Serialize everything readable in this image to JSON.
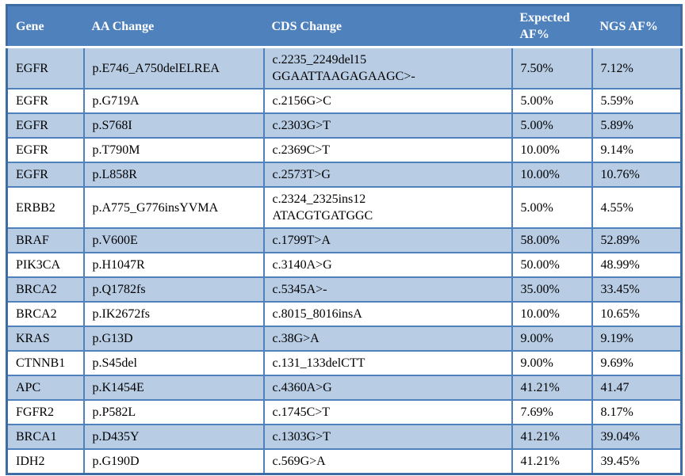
{
  "colors": {
    "header_bg": "#4f81bd",
    "header_text": "#ffffff",
    "row_shaded_bg": "#b8cce4",
    "row_plain_bg": "#ffffff",
    "inner_border": "#4f81bd",
    "outer_border": "#3e6da5",
    "body_text": "#000000"
  },
  "table": {
    "columns": [
      {
        "key": "gene",
        "label": "Gene"
      },
      {
        "key": "aa",
        "label": "AA Change"
      },
      {
        "key": "cds",
        "label": "CDS Change"
      },
      {
        "key": "expected",
        "label": "Expected AF%"
      },
      {
        "key": "ngs",
        "label": "NGS AF%"
      }
    ],
    "rows": [
      {
        "gene": "EGFR",
        "aa": "p.E746_A750delELREA",
        "cds": "c.2235_2249del15\nGGAATTAAGAGAAGC>-",
        "expected": "7.50%",
        "ngs": "7.12%"
      },
      {
        "gene": "EGFR",
        "aa": "p.G719A",
        "cds": "c.2156G>C",
        "expected": "5.00%",
        "ngs": "5.59%"
      },
      {
        "gene": "EGFR",
        "aa": "p.S768I",
        "cds": "c.2303G>T",
        "expected": "5.00%",
        "ngs": "5.89%"
      },
      {
        "gene": "EGFR",
        "aa": "p.T790M",
        "cds": "c.2369C>T",
        "expected": "10.00%",
        "ngs": "9.14%"
      },
      {
        "gene": "EGFR",
        "aa": "p.L858R",
        "cds": "c.2573T>G",
        "expected": "10.00%",
        "ngs": "10.76%"
      },
      {
        "gene": "ERBB2",
        "aa": "p.A775_G776insYVMA",
        "cds": "c.2324_2325ins12\nATACGTGATGGC",
        "expected": "5.00%",
        "ngs": "4.55%"
      },
      {
        "gene": "BRAF",
        "aa": "p.V600E",
        "cds": "c.1799T>A",
        "expected": "58.00%",
        "ngs": "52.89%"
      },
      {
        "gene": "PIK3CA",
        "aa": "p.H1047R",
        "cds": "c.3140A>G",
        "expected": "50.00%",
        "ngs": "48.99%"
      },
      {
        "gene": "BRCA2",
        "aa": "p.Q1782fs",
        "cds": "c.5345A>-",
        "expected": "35.00%",
        "ngs": "33.45%"
      },
      {
        "gene": "BRCA2",
        "aa": "p.IK2672fs",
        "cds": "c.8015_8016insA",
        "expected": "10.00%",
        "ngs": "10.65%"
      },
      {
        "gene": "KRAS",
        "aa": "p.G13D",
        "cds": "c.38G>A",
        "expected": "9.00%",
        "ngs": "9.19%"
      },
      {
        "gene": "CTNNB1",
        "aa": "p.S45del",
        "cds": "c.131_133delCTT",
        "expected": "9.00%",
        "ngs": "9.69%"
      },
      {
        "gene": "APC",
        "aa": "p.K1454E",
        "cds": "c.4360A>G",
        "expected": "41.21%",
        "ngs": "41.47"
      },
      {
        "gene": "FGFR2",
        "aa": "p.P582L",
        "cds": "c.1745C>T",
        "expected": "7.69%",
        "ngs": "8.17%"
      },
      {
        "gene": "BRCA1",
        "aa": "p.D435Y",
        "cds": "c.1303G>T",
        "expected": "41.21%",
        "ngs": "39.04%"
      },
      {
        "gene": "IDH2",
        "aa": "p.G190D",
        "cds": "c.569G>A",
        "expected": "41.21%",
        "ngs": "39.45%"
      }
    ]
  },
  "chart_data": {
    "type": "table",
    "title": "",
    "columns": [
      "Gene",
      "AA Change",
      "CDS Change",
      "Expected AF%",
      "NGS AF%"
    ],
    "series": [
      {
        "name": "Expected AF%",
        "values": [
          7.5,
          5.0,
          5.0,
          10.0,
          10.0,
          5.0,
          58.0,
          50.0,
          35.0,
          10.0,
          9.0,
          9.0,
          41.21,
          7.69,
          41.21,
          41.21
        ]
      },
      {
        "name": "NGS AF%",
        "values": [
          7.12,
          5.59,
          5.89,
          9.14,
          10.76,
          4.55,
          52.89,
          48.99,
          33.45,
          10.65,
          9.19,
          9.69,
          41.47,
          8.17,
          39.04,
          39.45
        ]
      }
    ],
    "categories": [
      "EGFR p.E746_A750delELREA",
      "EGFR p.G719A",
      "EGFR p.S768I",
      "EGFR p.T790M",
      "EGFR p.L858R",
      "ERBB2 p.A775_G776insYVMA",
      "BRAF p.V600E",
      "PIK3CA p.H1047R",
      "BRCA2 p.Q1782fs",
      "BRCA2 p.IK2672fs",
      "KRAS p.G13D",
      "CTNNB1 p.S45del",
      "APC p.K1454E",
      "FGFR2 p.P582L",
      "BRCA1 p.D435Y",
      "IDH2 p.G190D"
    ]
  }
}
